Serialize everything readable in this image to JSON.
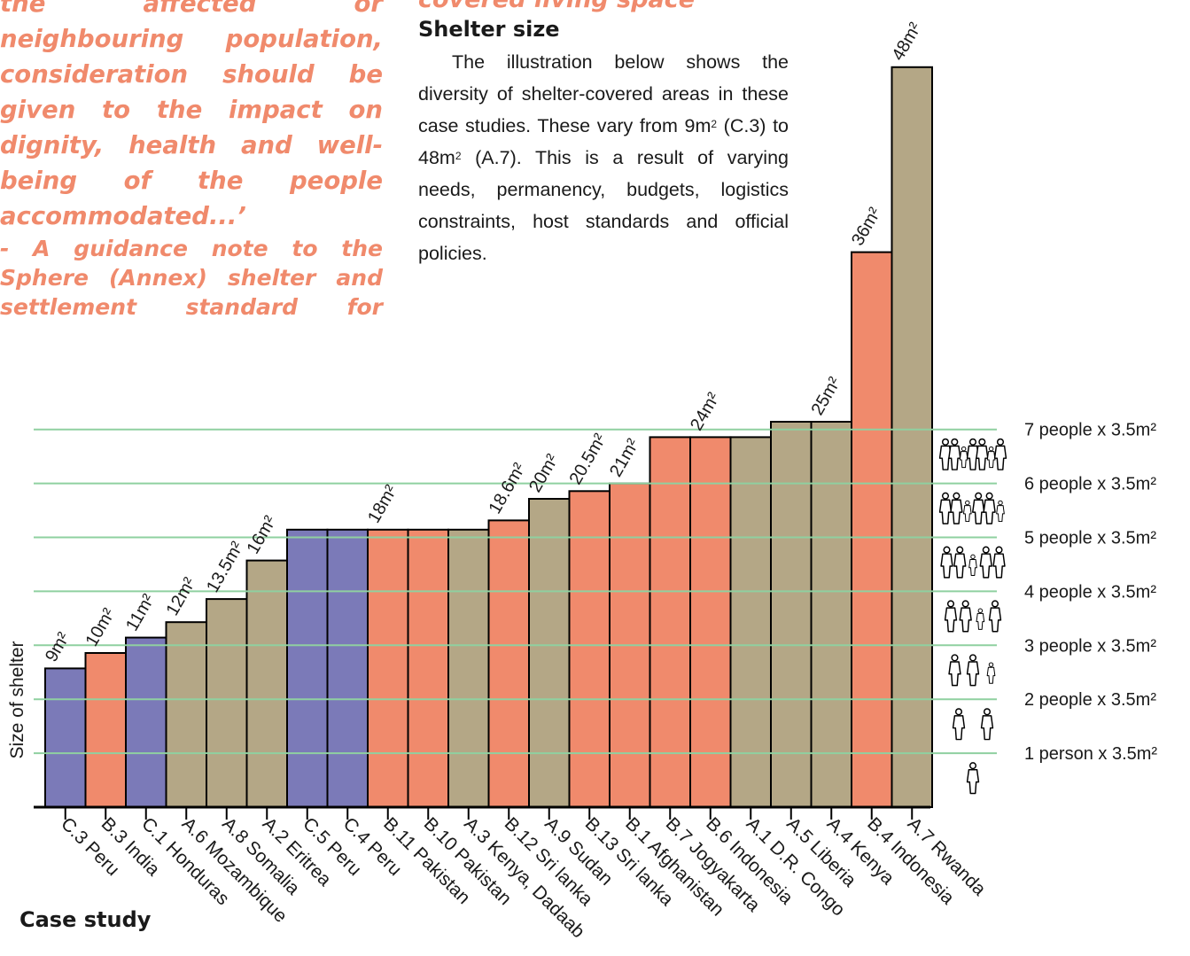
{
  "quote": {
    "body": "the affected or neighbouring population, consideration should be given to the impact on dignity, health and well-being of the people accommodated...’",
    "attribution": "- A guidance note to the Sphere (Annex) shelter and settlement standard for"
  },
  "subhead": "covered living space",
  "section_title": "Shelter size",
  "intro": {
    "part1": "The illustration below shows the diversity of shelter-covered areas in these case studies. These vary from 9m",
    "sup1": "2",
    "part2": " (C.3) to 48m",
    "sup2": "2",
    "part3": " (A.7). This is a result of varying needs, permanency, budgets, logistics constraints, host standards and official policies."
  },
  "colors": {
    "purple": "#7b7ab8",
    "salmon": "#f08a6c",
    "tan": "#b4a786",
    "gridline": "#8fd0a0",
    "text": "#1a1a1a"
  },
  "chart_data": {
    "type": "bar",
    "ylabel": "Size of shelter",
    "xlabel": "Case study",
    "categories": [
      "C.3 Peru",
      "B.3 India",
      "C.1 Honduras",
      "A.6 Mozambique",
      "A.8 Somalia",
      "A.2 Eritrea",
      "C.5 Peru",
      "C.4 Peru",
      "B.11 Pakistan",
      "B.10 Pakistan",
      "A.3 Kenya, Dadaab",
      "B.12 Sri lanka",
      "A.9 Sudan",
      "B.13 Sri lanka",
      "B.1 Afghanistan",
      "B.7 Jogyakarta",
      "B.6 Indonesia",
      "A.1 D.R. Congo",
      "A.5 Liberia",
      "A.4 Kenya",
      "B.4 Indonesia",
      "A.7 Rwanda"
    ],
    "values": [
      9,
      10,
      11,
      12,
      13.5,
      16,
      18,
      18,
      18,
      18,
      18,
      18.6,
      20,
      20.5,
      21,
      24,
      24,
      24,
      25,
      25,
      36,
      48
    ],
    "colors": [
      "purple",
      "salmon",
      "purple",
      "tan",
      "tan",
      "tan",
      "purple",
      "purple",
      "salmon",
      "salmon",
      "tan",
      "salmon",
      "tan",
      "salmon",
      "salmon",
      "salmon",
      "salmon",
      "tan",
      "tan",
      "tan",
      "salmon",
      "tan"
    ],
    "value_labels": [
      "9m²",
      "10m²",
      "11m²",
      "12m²",
      "13.5m²",
      "16m²",
      "",
      "",
      "18m²",
      "",
      "",
      "18.6m²",
      "20m²",
      "20.5m²",
      "21m²",
      "",
      "24m²",
      "",
      "",
      "25m²",
      "36m²",
      "48m²"
    ],
    "ylim": [
      0,
      48
    ],
    "reference_lines": [
      {
        "value": 3.5,
        "label": "1 person x 3.5m²"
      },
      {
        "value": 7,
        "label": "2 people x 3.5m²"
      },
      {
        "value": 10.5,
        "label": "3 people x 3.5m²"
      },
      {
        "value": 14,
        "label": "4 people x 3.5m²"
      },
      {
        "value": 17.5,
        "label": "5 people x 3.5m²"
      },
      {
        "value": 21,
        "label": "6 people x 3.5m²"
      },
      {
        "value": 24.5,
        "label": "7 people x 3.5m²"
      }
    ]
  }
}
